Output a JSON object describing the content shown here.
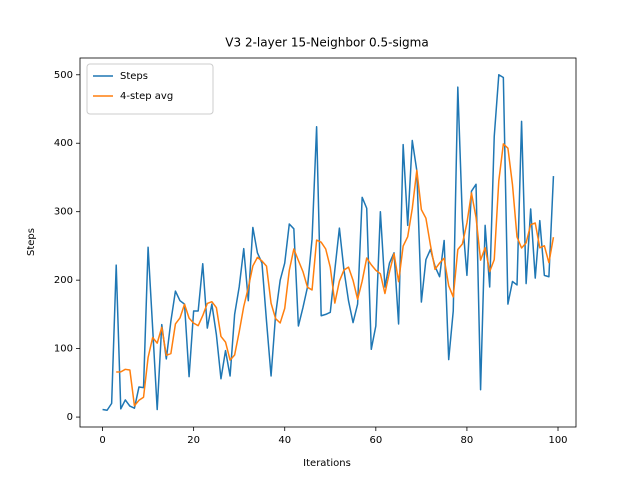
{
  "chart_data": {
    "type": "line",
    "title": "V3 2-layer 15-Neighbor 0.5-sigma",
    "xlabel": "Iterations",
    "ylabel": "Steps",
    "x": [
      0,
      1,
      2,
      3,
      4,
      5,
      6,
      7,
      8,
      9,
      10,
      11,
      12,
      13,
      14,
      15,
      16,
      17,
      18,
      19,
      20,
      21,
      22,
      23,
      24,
      25,
      26,
      27,
      28,
      29,
      30,
      31,
      32,
      33,
      34,
      35,
      36,
      37,
      38,
      39,
      40,
      41,
      42,
      43,
      44,
      45,
      46,
      47,
      48,
      49,
      50,
      51,
      52,
      53,
      54,
      55,
      56,
      57,
      58,
      59,
      60,
      61,
      62,
      63,
      64,
      65,
      66,
      67,
      68,
      69,
      70,
      71,
      72,
      73,
      74,
      75,
      76,
      77,
      78,
      79,
      80,
      81,
      82,
      83,
      84,
      85,
      86,
      87,
      88,
      89,
      90,
      91,
      92,
      93,
      94,
      95,
      96,
      97,
      98,
      99
    ],
    "series": [
      {
        "name": "Steps",
        "color": "#1f77b4",
        "values": [
          11,
          10,
          20,
          222,
          12,
          25,
          16,
          13,
          44,
          43,
          248,
          130,
          11,
          135,
          85,
          140,
          184,
          170,
          165,
          59,
          155,
          155,
          224,
          130,
          165,
          120,
          56,
          97,
          60,
          150,
          190,
          246,
          170,
          277,
          240,
          225,
          140,
          60,
          150,
          200,
          225,
          282,
          275,
          133,
          160,
          190,
          260,
          424,
          148,
          150,
          153,
          215,
          276,
          215,
          170,
          138,
          165,
          321,
          305,
          99,
          133,
          300,
          190,
          225,
          240,
          136,
          398,
          280,
          404,
          360,
          168,
          230,
          245,
          220,
          205,
          258,
          84,
          155,
          482,
          290,
          207,
          330,
          340,
          40,
          280,
          190,
          410,
          500,
          496,
          165,
          198,
          193,
          432,
          195,
          304,
          203,
          287,
          207,
          205,
          352
        ]
      },
      {
        "name": "4-step avg",
        "color": "#ff7f0e",
        "values": [
          null,
          null,
          null,
          65.75,
          66,
          69.75,
          68.75,
          16.5,
          24.5,
          29,
          87,
          116.25,
          108,
          131,
          90.25,
          92.75,
          136,
          144.75,
          164.75,
          144.5,
          137.25,
          133.5,
          148.25,
          166,
          168.5,
          159.75,
          117.75,
          109.5,
          83.25,
          90.75,
          124.25,
          161.5,
          189,
          220.75,
          233.25,
          228,
          220.5,
          166.25,
          143.75,
          137.5,
          158.75,
          214.25,
          245.5,
          228.75,
          212.5,
          189.5,
          185.75,
          258.5,
          255.5,
          245.5,
          218.75,
          166.5,
          198.5,
          214.75,
          219,
          199.75,
          172,
          198.5,
          232.25,
          222.5,
          214.5,
          209.25,
          180.5,
          212,
          238.75,
          197.75,
          249.75,
          263.5,
          304.5,
          360.5,
          303,
          290.5,
          250.75,
          215.75,
          225,
          232,
          191.75,
          175.5,
          244.75,
          252.75,
          283.5,
          327.25,
          291.75,
          229.25,
          247.5,
          212.5,
          230,
          345,
          399,
          392.75,
          339.75,
          263,
          247,
          254.5,
          281,
          283.5,
          247.25,
          250.25,
          225.5,
          262.75
        ]
      }
    ],
    "xlim": [
      -4.95,
      103.95
    ],
    "ylim": [
      -14.5,
      524.5
    ],
    "xticks": [
      0,
      20,
      40,
      60,
      80,
      100
    ],
    "yticks": [
      0,
      100,
      200,
      300,
      400,
      500
    ],
    "grid": false,
    "legend": "upper left"
  }
}
